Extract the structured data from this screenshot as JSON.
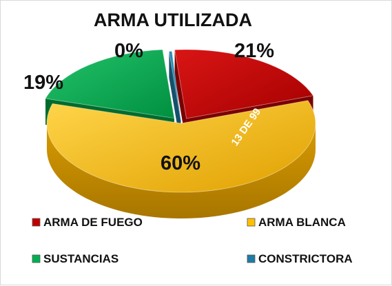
{
  "colors": {
    "arma_de_fuego": "#C00000",
    "arma_blanca": "#FFC000",
    "sustancias": "#00B050",
    "constrictora": "#1F7CA6"
  },
  "chart_data": {
    "type": "pie",
    "title": "ARMA UTILIZADA",
    "categories": [
      "ARMA DE FUEGO",
      "ARMA BLANCA",
      "SUSTANCIAS",
      "CONSTRICTORA"
    ],
    "values": [
      21,
      60,
      19,
      0
    ],
    "labels": [
      "21%",
      "60%",
      "19%",
      "0%"
    ],
    "annotation": "13 DE 99",
    "legend_position": "bottom",
    "style": "3d-exploded"
  }
}
